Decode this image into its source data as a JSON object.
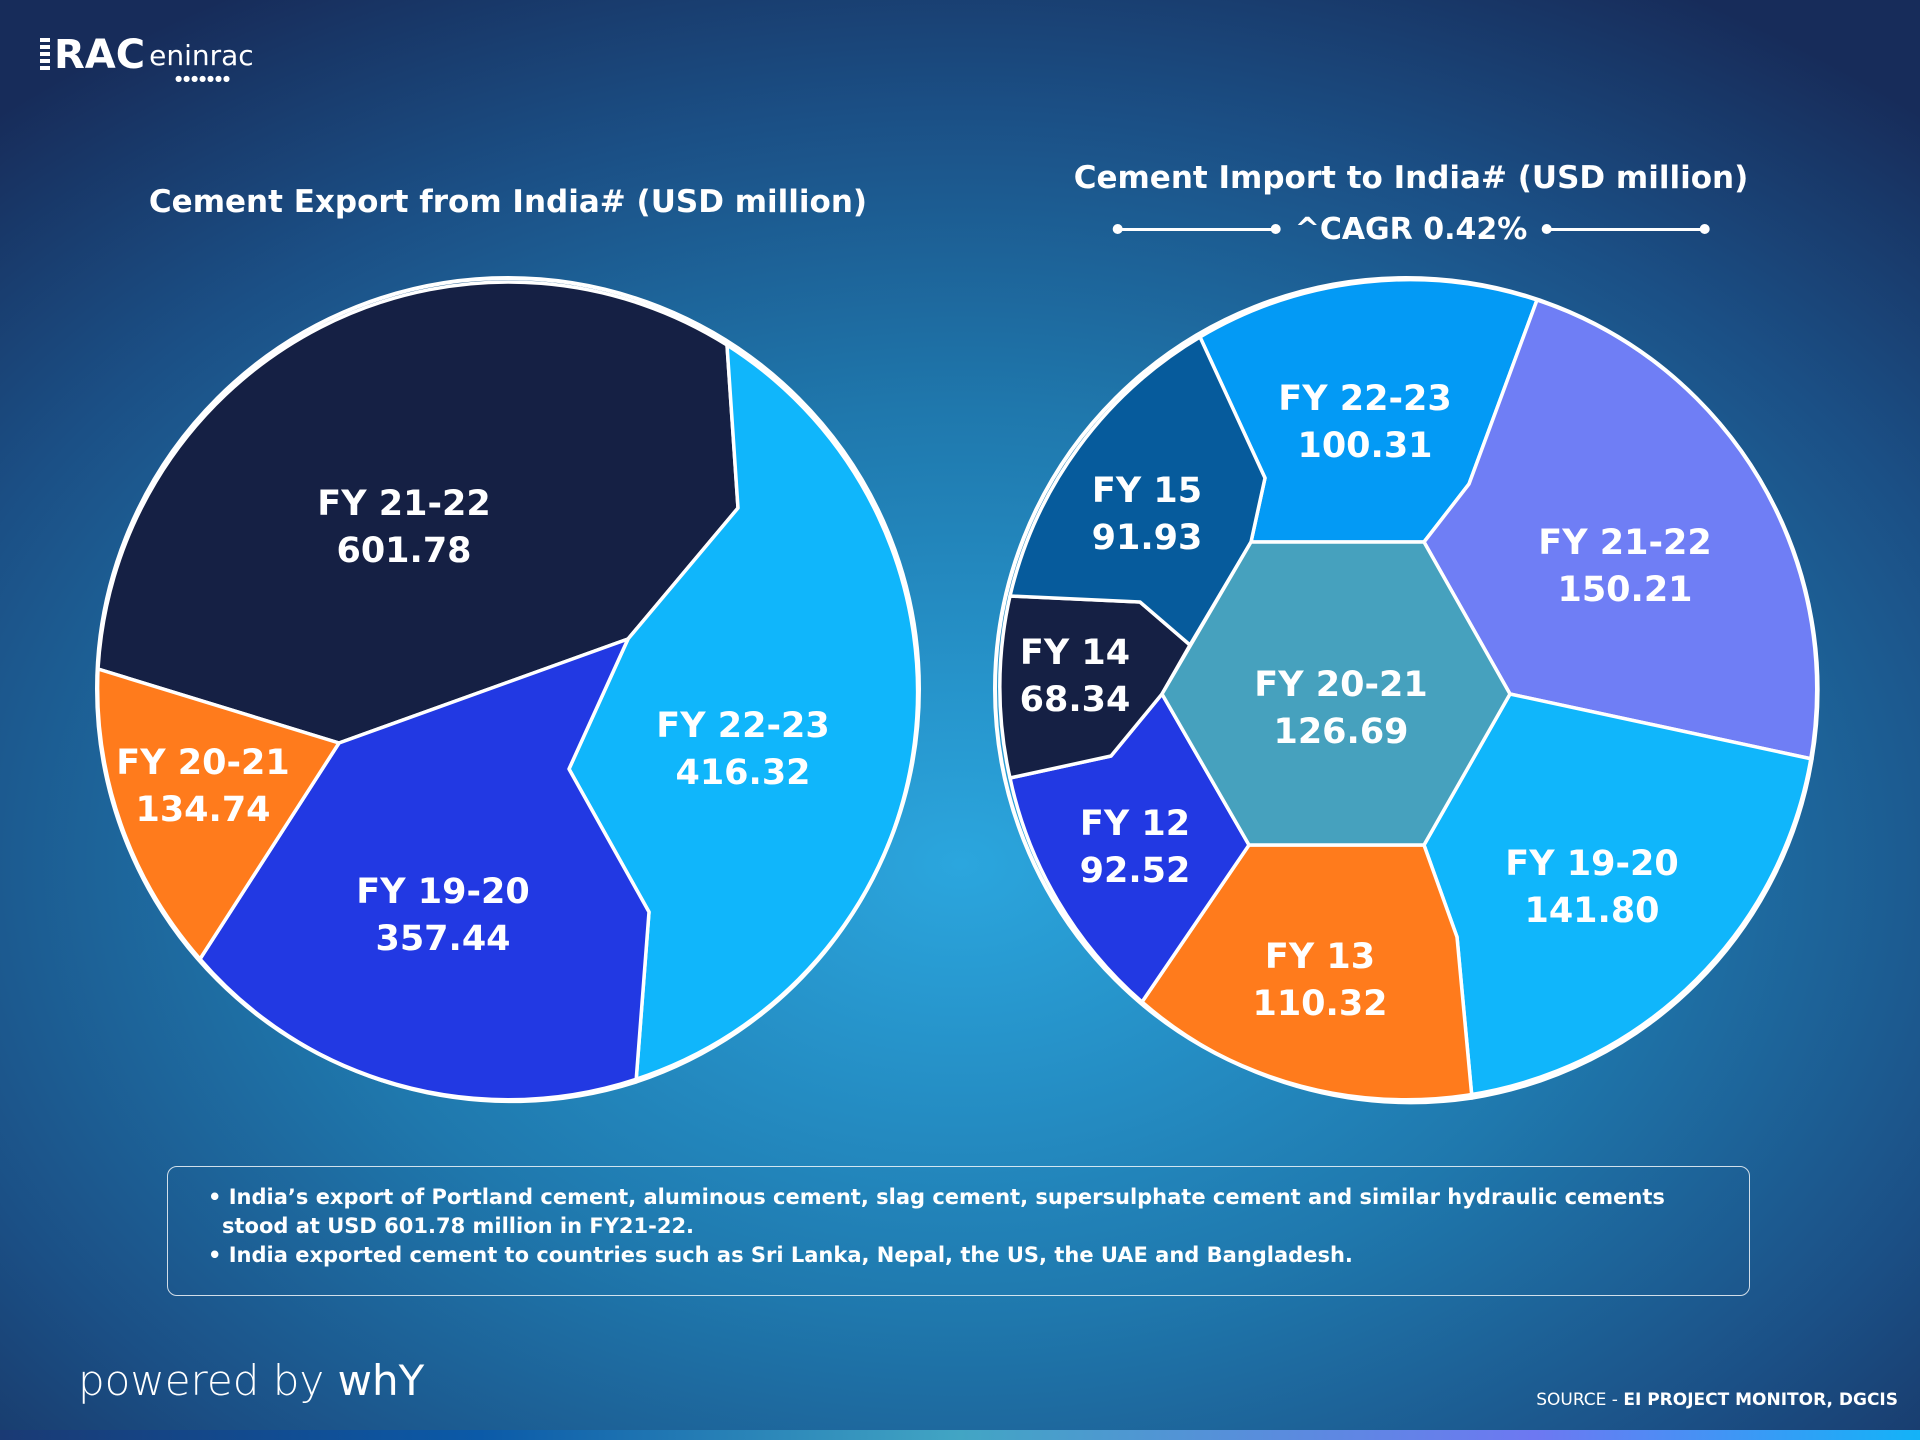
{
  "logo": {
    "text_bold": "RAC",
    "text_rest": "eninrac"
  },
  "footer": {
    "powered_prefix": "powered by",
    "powered_brand": "whY",
    "source_label": "SOURCE -",
    "source_value": "EI PROJECT MONITOR, DGCIS"
  },
  "notes": [
    "India’s export of Portland cement, aluminous cement, slag cement, supersulphate cement and similar hydraulic cements stood at USD 601.78 million in FY21-22.",
    "India exported cement to countries such as Sri Lanka, Nepal, the US, the UAE and Bangladesh."
  ],
  "chart_data": [
    {
      "type": "pie",
      "title": "Cement Export from India# (USD million)",
      "categories": [
        "FY 21-22",
        "FY 22-23",
        "FY 19-20",
        "FY 20-21"
      ],
      "values": [
        "601.78",
        "416.32",
        "357.44",
        "134.74"
      ],
      "colors": [
        "#152044",
        "#10b6fb",
        "#2239e3",
        "#ff7b1c"
      ]
    },
    {
      "type": "pie",
      "title": "Cement Import to India# (USD million)",
      "subtitle": "^CAGR 0.42%",
      "categories": [
        "FY 22-23",
        "FY 21-22",
        "FY 19-20",
        "FY 13",
        "FY 12",
        "FY 14",
        "FY 15",
        "FY 20-21"
      ],
      "values": [
        "100.31",
        "150.21",
        "141.80",
        "110.32",
        "92.52",
        "68.34",
        "91.93",
        "126.69"
      ],
      "colors": [
        "#039af5",
        "#6f7ef5",
        "#10b6fb",
        "#ff7b1c",
        "#2239e3",
        "#152044",
        "#065b9c",
        "#46a1be"
      ]
    }
  ]
}
